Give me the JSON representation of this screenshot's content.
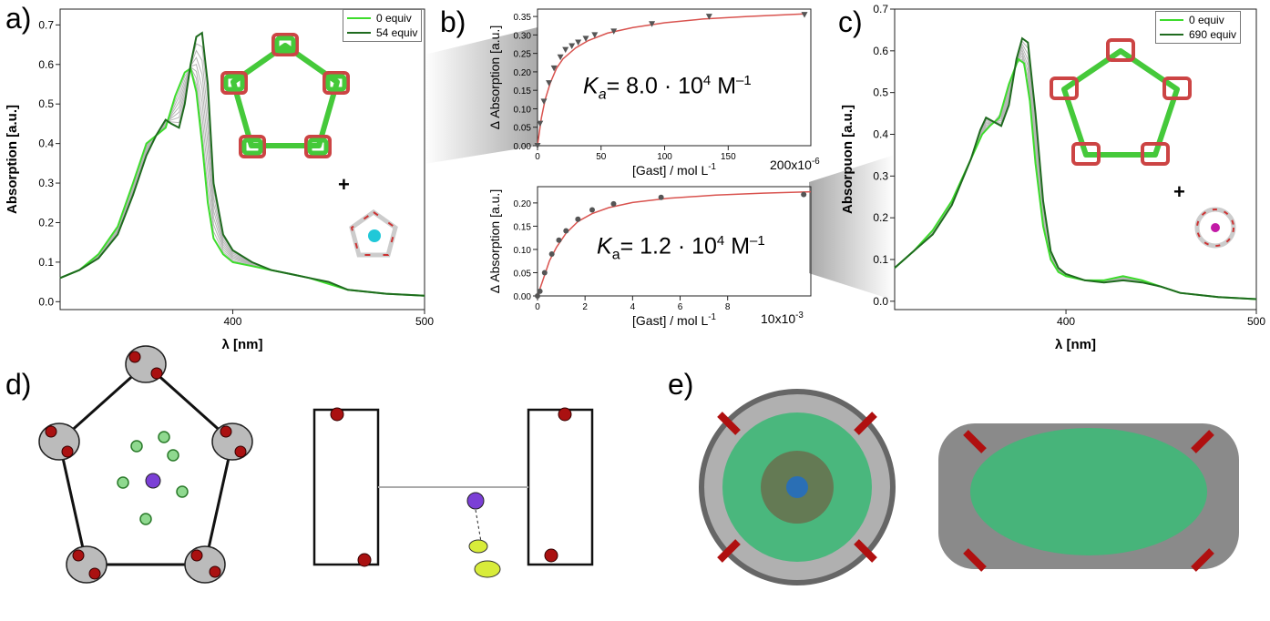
{
  "panel_labels": {
    "a": "a)",
    "b": "b)",
    "c": "c)",
    "d": "d)",
    "e": "e)"
  },
  "ka": {
    "top_k": "K",
    "top_sub": "a",
    "top_text": "= 8.0 · 10",
    "top_exp": "4",
    "top_unit": " M",
    "top_unit_exp": "–1",
    "bottom_k": "K",
    "bottom_sub": "a",
    "bottom_text": "= 1.2 · 10",
    "bottom_exp": "4",
    "bottom_unit": " M",
    "bottom_unit_exp": "–1"
  },
  "plus_sign": "+",
  "colors": {
    "light_green": "#3ddc2c",
    "dark_green": "#1f6b1f",
    "fit_red": "#d9534f",
    "marker_gray": "#555555",
    "gray_series": "#b5b5b5"
  },
  "chart_data": [
    {
      "id": "a",
      "type": "line",
      "ylabel": "Absorption [a.u.]",
      "xlabel": "λ [nm]",
      "xlim": [
        310,
        500
      ],
      "ylim": [
        -0.02,
        0.74
      ],
      "xticks": [
        400,
        500
      ],
      "yticks": [
        0.0,
        0.1,
        0.2,
        0.3,
        0.4,
        0.5,
        0.6,
        0.7
      ],
      "legend": [
        "0 equiv",
        "54 equiv"
      ],
      "legend_position": "top-right",
      "series": [
        {
          "name": "0 equiv",
          "x": [
            310,
            320,
            330,
            340,
            348,
            355,
            360,
            365,
            370,
            375,
            378,
            381,
            384,
            387,
            390,
            395,
            400,
            410,
            420,
            430,
            440,
            450,
            460,
            480,
            500
          ],
          "y": [
            0.06,
            0.08,
            0.12,
            0.19,
            0.3,
            0.4,
            0.42,
            0.44,
            0.52,
            0.58,
            0.59,
            0.53,
            0.4,
            0.25,
            0.16,
            0.12,
            0.1,
            0.09,
            0.08,
            0.07,
            0.06,
            0.045,
            0.03,
            0.02,
            0.015
          ]
        },
        {
          "name": "54 equiv",
          "x": [
            310,
            320,
            330,
            340,
            348,
            355,
            360,
            365,
            368,
            372,
            375,
            378,
            381,
            384,
            387,
            390,
            395,
            400,
            410,
            420,
            430,
            440,
            450,
            460,
            480,
            500
          ],
          "y": [
            0.06,
            0.08,
            0.11,
            0.17,
            0.27,
            0.37,
            0.42,
            0.46,
            0.45,
            0.44,
            0.5,
            0.6,
            0.67,
            0.68,
            0.55,
            0.3,
            0.17,
            0.13,
            0.1,
            0.08,
            0.07,
            0.06,
            0.05,
            0.03,
            0.02,
            0.015
          ]
        }
      ]
    },
    {
      "id": "b-top",
      "type": "scatter",
      "ylabel": "Δ Absorption [a.u.]",
      "xlabel": "[Gast] / mol L",
      "xlabel_exp": "-1",
      "x_scale_note": "200x10",
      "x_scale_exp": "-6",
      "xlim": [
        0,
        215
      ],
      "ylim": [
        0,
        0.37
      ],
      "xticks": [
        0,
        50,
        100,
        150
      ],
      "yticks": [
        0.0,
        0.05,
        0.1,
        0.15,
        0.2,
        0.25,
        0.3,
        0.35
      ],
      "series": [
        {
          "name": "",
          "x": [
            0,
            2,
            5,
            9,
            13,
            18,
            22,
            27,
            32,
            38,
            45,
            60,
            90,
            135,
            210
          ],
          "y": [
            0.0,
            0.06,
            0.12,
            0.17,
            0.21,
            0.24,
            0.26,
            0.27,
            0.28,
            0.29,
            0.3,
            0.31,
            0.33,
            0.35,
            0.355
          ]
        }
      ],
      "fit": {
        "x": [
          0,
          3,
          6,
          10,
          15,
          20,
          30,
          40,
          55,
          75,
          100,
          130,
          165,
          210
        ],
        "y": [
          0,
          0.075,
          0.125,
          0.17,
          0.21,
          0.235,
          0.265,
          0.285,
          0.305,
          0.32,
          0.333,
          0.343,
          0.35,
          0.357
        ]
      }
    },
    {
      "id": "b-bottom",
      "type": "scatter",
      "ylabel": "Δ Absorption [a.u.]",
      "xlabel": "[Gast] / mol L",
      "xlabel_exp": "-1",
      "x_scale_note": "10x10",
      "x_scale_exp": "-3",
      "xlim": [
        0,
        11.5
      ],
      "ylim": [
        0,
        0.235
      ],
      "xticks": [
        0,
        2,
        4,
        6,
        8
      ],
      "yticks": [
        0.0,
        0.05,
        0.1,
        0.15,
        0.2
      ],
      "series": [
        {
          "name": "",
          "x": [
            0,
            0.1,
            0.3,
            0.6,
            0.9,
            1.2,
            1.7,
            2.3,
            3.2,
            5.2,
            11.2
          ],
          "y": [
            0.0,
            0.01,
            0.05,
            0.09,
            0.12,
            0.14,
            0.165,
            0.185,
            0.198,
            0.212,
            0.218
          ]
        }
      ],
      "fit": {
        "x": [
          0,
          0.2,
          0.5,
          0.8,
          1.2,
          1.7,
          2.3,
          3,
          4,
          5.5,
          7.5,
          9.5,
          11.5
        ],
        "y": [
          0,
          0.03,
          0.075,
          0.105,
          0.135,
          0.16,
          0.177,
          0.19,
          0.201,
          0.21,
          0.217,
          0.221,
          0.224
        ]
      }
    },
    {
      "id": "c",
      "type": "line",
      "ylabel": "Absorpuon [a.u.]",
      "xlabel": "λ [nm]",
      "xlim": [
        310,
        500
      ],
      "ylim": [
        -0.02,
        0.7
      ],
      "xticks": [
        400,
        500
      ],
      "yticks": [
        0.0,
        0.1,
        0.2,
        0.3,
        0.4,
        0.5,
        0.6,
        0.7
      ],
      "legend": [
        "0 equiv",
        "690 equiv"
      ],
      "legend_position": "top-right",
      "series": [
        {
          "name": "0 equiv",
          "x": [
            310,
            320,
            330,
            340,
            350,
            356,
            360,
            365,
            370,
            375,
            378,
            381,
            384,
            388,
            392,
            396,
            400,
            410,
            420,
            430,
            440,
            450,
            460,
            480,
            500
          ],
          "y": [
            0.08,
            0.12,
            0.17,
            0.24,
            0.34,
            0.4,
            0.42,
            0.44,
            0.52,
            0.58,
            0.57,
            0.48,
            0.33,
            0.18,
            0.1,
            0.07,
            0.06,
            0.05,
            0.05,
            0.06,
            0.05,
            0.035,
            0.02,
            0.01,
            0.005
          ]
        },
        {
          "name": "690 equiv",
          "x": [
            310,
            320,
            330,
            340,
            350,
            355,
            358,
            362,
            366,
            370,
            374,
            377,
            380,
            384,
            388,
            392,
            396,
            400,
            410,
            420,
            430,
            440,
            450,
            460,
            480,
            500
          ],
          "y": [
            0.08,
            0.12,
            0.16,
            0.23,
            0.34,
            0.41,
            0.44,
            0.43,
            0.42,
            0.47,
            0.58,
            0.63,
            0.62,
            0.45,
            0.24,
            0.12,
            0.08,
            0.065,
            0.05,
            0.045,
            0.05,
            0.045,
            0.035,
            0.02,
            0.01,
            0.005
          ]
        }
      ]
    }
  ]
}
